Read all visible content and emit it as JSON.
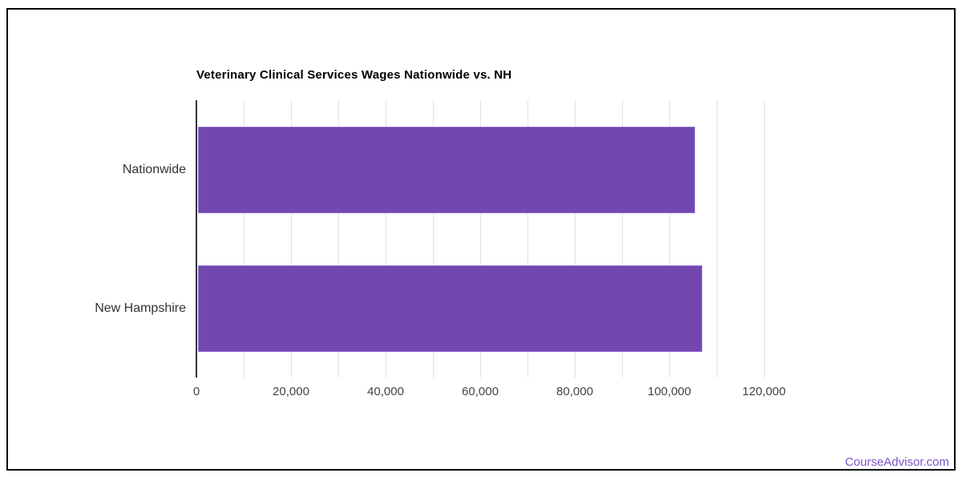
{
  "page": {
    "background_color": "#ffffff",
    "border_color": "#000000"
  },
  "chart_data": {
    "type": "bar",
    "orientation": "horizontal",
    "title": "Veterinary Clinical Services Wages Nationwide vs. NH",
    "categories": [
      "Nationwide",
      "New Hampshire"
    ],
    "values": [
      105400,
      106900
    ],
    "xlabel": "",
    "ylabel": "",
    "xlim": [
      0,
      120000
    ],
    "x_tick_values": [
      0,
      20000,
      40000,
      60000,
      80000,
      100000,
      120000
    ],
    "x_tick_labels": [
      "0",
      "20,000",
      "40,000",
      "60,000",
      "80,000",
      "100,000",
      "120,000"
    ],
    "gridline_interval": 10000,
    "grid_on": true,
    "legend_position": "none",
    "bar_color": "#7347b0",
    "bar_border_color": "#9274cf",
    "gridline_color": "#e2e2e2",
    "axis_baseline_color": "#333333"
  },
  "footer": {
    "link_label": "CourseAdvisor.com",
    "link_color": "#7d55c8"
  }
}
